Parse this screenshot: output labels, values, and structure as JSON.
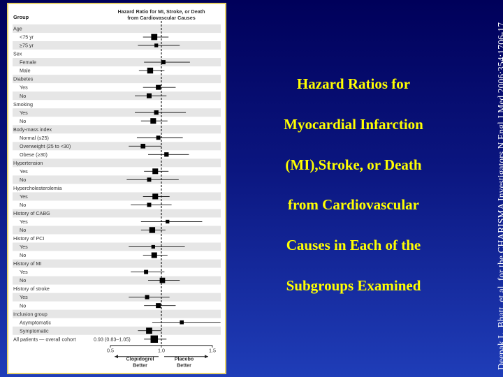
{
  "title_lines": [
    "Hazard Ratios for",
    "Myocardial Infarction",
    "(MI),Stroke, or Death",
    "from Cardiovascular",
    "Causes in Each of the",
    "Subgroups Examined"
  ],
  "citation": "Deepak L. Bhatt, et al, for the CHARISMA Investigators N Engl J Med 2006;354:1706-17",
  "colors": {
    "background_top": "#00005a",
    "background_bottom": "#1f3db8",
    "title": "#ffff00",
    "panel_border": "#e8d36a",
    "row_stripe": "#e6e6e6",
    "marker": "#000000"
  },
  "chart_data": {
    "type": "forest",
    "column_header": "Group",
    "header_lines": [
      "Hazard Ratio for MI, Stroke, or Death",
      "from Cardiovascular Causes"
    ],
    "x_ticks": [
      0.5,
      1.0,
      1.5
    ],
    "x_tick_labels": [
      "0.5",
      "1.0",
      "1.5"
    ],
    "xlim": [
      0.5,
      1.5
    ],
    "reference_value": 1.0,
    "better_labels": {
      "left": [
        "Clopidogrel",
        "Better"
      ],
      "right": [
        "Placebo",
        "Better"
      ]
    },
    "rows": [
      {
        "kind": "category",
        "label": "Age"
      },
      {
        "kind": "subgroup",
        "label": "<75 yr",
        "hr": 0.93,
        "lo": 0.82,
        "hi": 1.07,
        "weight": 1.25
      },
      {
        "kind": "subgroup",
        "label": "≥75 yr",
        "hr": 0.95,
        "lo": 0.77,
        "hi": 1.18,
        "weight": 0.75
      },
      {
        "kind": "category",
        "label": "Sex"
      },
      {
        "kind": "subgroup",
        "label": "Female",
        "hr": 1.02,
        "lo": 0.83,
        "hi": 1.28,
        "weight": 0.85
      },
      {
        "kind": "subgroup",
        "label": "Male",
        "hr": 0.89,
        "lo": 0.78,
        "hi": 1.03,
        "weight": 1.2
      },
      {
        "kind": "category",
        "label": "Diabetes"
      },
      {
        "kind": "subgroup",
        "label": "Yes",
        "hr": 0.97,
        "lo": 0.82,
        "hi": 1.14,
        "weight": 1.0
      },
      {
        "kind": "subgroup",
        "label": "No",
        "hr": 0.88,
        "lo": 0.74,
        "hi": 1.05,
        "weight": 1.0
      },
      {
        "kind": "category",
        "label": "Smoking"
      },
      {
        "kind": "subgroup",
        "label": "Yes",
        "hr": 0.95,
        "lo": 0.74,
        "hi": 1.24,
        "weight": 0.9
      },
      {
        "kind": "subgroup",
        "label": "No",
        "hr": 0.92,
        "lo": 0.8,
        "hi": 1.06,
        "weight": 1.15
      },
      {
        "kind": "category",
        "label": "Body-mass index"
      },
      {
        "kind": "subgroup",
        "label": "Normal (≤25)",
        "hr": 0.97,
        "lo": 0.76,
        "hi": 1.21,
        "weight": 0.85
      },
      {
        "kind": "subgroup",
        "label": "Overweight (25 to <30)",
        "hr": 0.82,
        "lo": 0.68,
        "hi": 1.0,
        "weight": 0.95
      },
      {
        "kind": "subgroup",
        "label": "Obese (≥30)",
        "hr": 1.05,
        "lo": 0.87,
        "hi": 1.27,
        "weight": 0.9
      },
      {
        "kind": "category",
        "label": "Hypertension"
      },
      {
        "kind": "subgroup",
        "label": "Yes",
        "hr": 0.94,
        "lo": 0.83,
        "hi": 1.07,
        "weight": 1.15
      },
      {
        "kind": "subgroup",
        "label": "No",
        "hr": 0.88,
        "lo": 0.66,
        "hi": 1.17,
        "weight": 0.85
      },
      {
        "kind": "category",
        "label": "Hypercholesterolemia"
      },
      {
        "kind": "subgroup",
        "label": "Yes",
        "hr": 0.94,
        "lo": 0.82,
        "hi": 1.08,
        "weight": 1.15
      },
      {
        "kind": "subgroup",
        "label": "No",
        "hr": 0.88,
        "lo": 0.7,
        "hi": 1.1,
        "weight": 0.85
      },
      {
        "kind": "category",
        "label": "History of CABG"
      },
      {
        "kind": "subgroup",
        "label": "Yes",
        "hr": 1.06,
        "lo": 0.8,
        "hi": 1.4,
        "weight": 0.75
      },
      {
        "kind": "subgroup",
        "label": "No",
        "hr": 0.91,
        "lo": 0.8,
        "hi": 1.04,
        "weight": 1.2
      },
      {
        "kind": "category",
        "label": "History of PCI"
      },
      {
        "kind": "subgroup",
        "label": "Yes",
        "hr": 0.92,
        "lo": 0.68,
        "hi": 1.23,
        "weight": 0.75
      },
      {
        "kind": "subgroup",
        "label": "No",
        "hr": 0.93,
        "lo": 0.82,
        "hi": 1.06,
        "weight": 1.15
      },
      {
        "kind": "category",
        "label": "History of MI"
      },
      {
        "kind": "subgroup",
        "label": "Yes",
        "hr": 0.85,
        "lo": 0.7,
        "hi": 1.03,
        "weight": 0.85
      },
      {
        "kind": "subgroup",
        "label": "No",
        "hr": 1.01,
        "lo": 0.87,
        "hi": 1.18,
        "weight": 1.1
      },
      {
        "kind": "category",
        "label": "History of stroke"
      },
      {
        "kind": "subgroup",
        "label": "Yes",
        "hr": 0.86,
        "lo": 0.68,
        "hi": 1.08,
        "weight": 0.85
      },
      {
        "kind": "subgroup",
        "label": "No",
        "hr": 0.97,
        "lo": 0.83,
        "hi": 1.14,
        "weight": 1.0
      },
      {
        "kind": "category",
        "label": "Inclusion group"
      },
      {
        "kind": "subgroup",
        "label": "Asymptomatic",
        "hr": 1.2,
        "lo": 0.91,
        "hi": 1.58,
        "weight": 0.8
      },
      {
        "kind": "subgroup",
        "label": "Symptomatic",
        "hr": 0.88,
        "lo": 0.77,
        "hi": 1.0,
        "weight": 1.25
      },
      {
        "kind": "overall",
        "label": "All patients — overall cohort",
        "value_label": "0.93 (0.83–1.05)",
        "hr": 0.93,
        "lo": 0.83,
        "hi": 1.05,
        "weight": 1.5
      }
    ]
  }
}
